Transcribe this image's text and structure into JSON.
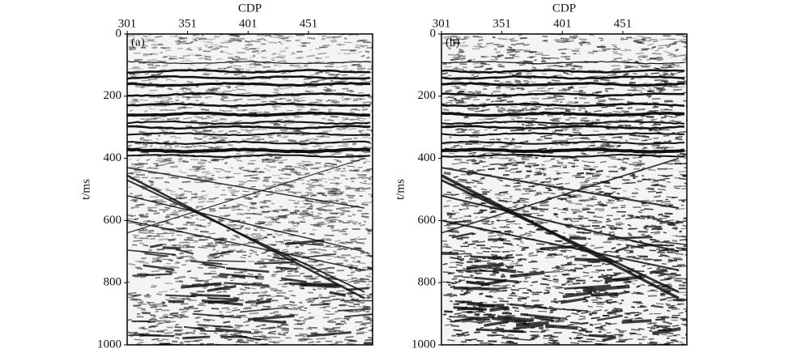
{
  "chart_data": [
    {
      "type": "seismic",
      "panel_label": "(a)",
      "xlabel": "CDP",
      "ylabel": "t/ms",
      "xlim": [
        301,
        504
      ],
      "xticks": [
        301,
        351,
        401,
        451
      ],
      "ylim": [
        0,
        1000
      ],
      "yticks": [
        0,
        200,
        400,
        600,
        800,
        1000
      ]
    },
    {
      "type": "seismic",
      "panel_label": "(b)",
      "xlabel": "CDP",
      "ylabel": "t/ms",
      "xlim": [
        301,
        504
      ],
      "xticks": [
        301,
        351,
        401,
        451
      ],
      "ylim": [
        0,
        1000
      ],
      "yticks": [
        0,
        200,
        400,
        600,
        800,
        1000
      ]
    }
  ]
}
